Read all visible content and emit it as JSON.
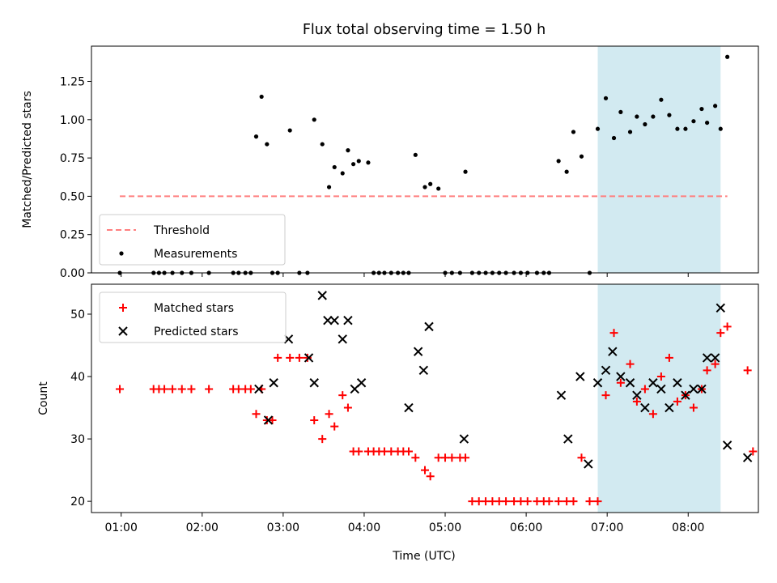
{
  "chart_data": {
    "title": "Flux total observing time = 1.50 h",
    "shaded_span": {
      "x_start": "06:53",
      "x_end": "08:24",
      "color": "#add8e6"
    },
    "x_axis": {
      "xlabel": "Time (UTC)",
      "xlim": [
        "00:38",
        "08:52"
      ],
      "ticks": [
        "01:00",
        "02:00",
        "03:00",
        "04:00",
        "05:00",
        "06:00",
        "07:00",
        "08:00"
      ]
    },
    "panels": [
      {
        "type": "scatter",
        "ylabel": "Matched/Predicted stars",
        "ylim": [
          0,
          1.48
        ],
        "yticks": [
          "0.00",
          "0.25",
          "0.50",
          "0.75",
          "1.00",
          "1.25"
        ],
        "legend": {
          "placement": "lower-left",
          "entries": [
            "Threshold",
            "Measurements"
          ]
        },
        "threshold": {
          "name": "Threshold",
          "value": 0.5,
          "x_start": "00:59",
          "x_end": "08:29",
          "color": "#ff7f7f"
        },
        "series": [
          {
            "name": "Measurements",
            "marker": "dot",
            "color": "#000000",
            "x": [
              "00:59",
              "01:24",
              "01:28",
              "01:32",
              "01:38",
              "01:45",
              "01:52",
              "02:05",
              "02:23",
              "02:27",
              "02:32",
              "02:36",
              "02:40",
              "02:44",
              "02:48",
              "02:52",
              "02:56",
              "03:05",
              "03:12",
              "03:18",
              "03:23",
              "03:29",
              "03:34",
              "03:38",
              "03:44",
              "03:48",
              "03:52",
              "03:56",
              "04:03",
              "04:07",
              "04:11",
              "04:15",
              "04:20",
              "04:25",
              "04:29",
              "04:33",
              "04:38",
              "04:45",
              "04:49",
              "04:55",
              "05:00",
              "05:05",
              "05:11",
              "05:15",
              "05:20",
              "05:25",
              "05:30",
              "05:35",
              "05:40",
              "05:45",
              "05:51",
              "05:56",
              "06:01",
              "06:08",
              "06:13",
              "06:17",
              "06:24",
              "06:30",
              "06:35",
              "06:41",
              "06:47",
              "06:53",
              "06:59",
              "07:05",
              "07:10",
              "07:17",
              "07:22",
              "07:28",
              "07:34",
              "07:40",
              "07:46",
              "07:52",
              "07:58",
              "08:04",
              "08:10",
              "08:14",
              "08:20",
              "08:24",
              "08:29"
            ],
            "y": [
              0.0,
              0.0,
              0.0,
              0.0,
              0.0,
              0.0,
              0.0,
              0.0,
              0.0,
              0.0,
              0.0,
              0.0,
              0.89,
              1.15,
              0.84,
              0.0,
              0.0,
              0.93,
              0.0,
              0.0,
              1.0,
              0.84,
              0.56,
              0.69,
              0.65,
              0.8,
              0.71,
              0.73,
              0.72,
              0.0,
              0.0,
              0.0,
              0.0,
              0.0,
              0.0,
              0.0,
              0.77,
              0.56,
              0.58,
              0.55,
              0.0,
              0.0,
              0.0,
              0.66,
              0.0,
              0.0,
              0.0,
              0.0,
              0.0,
              0.0,
              0.0,
              0.0,
              0.0,
              0.0,
              0.0,
              0.0,
              0.73,
              0.66,
              0.92,
              0.76,
              0.0,
              0.94,
              1.14,
              0.88,
              1.05,
              0.92,
              1.02,
              0.97,
              1.02,
              1.13,
              1.03,
              0.94,
              0.94,
              0.99,
              1.07,
              0.98,
              1.09,
              0.94,
              1.41
            ]
          }
        ]
      },
      {
        "type": "scatter",
        "ylabel": "Count",
        "ylim": [
          18.2,
          54.8
        ],
        "yticks": [
          "20",
          "30",
          "40",
          "50"
        ],
        "legend": {
          "placement": "upper-left",
          "entries": [
            "Matched stars",
            "Predicted stars"
          ]
        },
        "series": [
          {
            "name": "Matched stars",
            "marker": "plus",
            "color": "#ff0000",
            "x": [
              "00:59",
              "01:24",
              "01:28",
              "01:32",
              "01:38",
              "01:45",
              "01:52",
              "02:05",
              "02:23",
              "02:27",
              "02:32",
              "02:36",
              "02:40",
              "02:44",
              "02:48",
              "02:52",
              "02:56",
              "03:05",
              "03:12",
              "03:18",
              "03:23",
              "03:29",
              "03:34",
              "03:38",
              "03:44",
              "03:48",
              "03:52",
              "03:56",
              "04:03",
              "04:07",
              "04:11",
              "04:15",
              "04:20",
              "04:25",
              "04:29",
              "04:33",
              "04:38",
              "04:45",
              "04:49",
              "04:55",
              "05:00",
              "05:05",
              "05:11",
              "05:15",
              "05:20",
              "05:25",
              "05:30",
              "05:35",
              "05:40",
              "05:45",
              "05:51",
              "05:56",
              "06:01",
              "06:08",
              "06:13",
              "06:17",
              "06:24",
              "06:30",
              "06:35",
              "06:41",
              "06:47",
              "06:53",
              "06:59",
              "07:05",
              "07:10",
              "07:17",
              "07:22",
              "07:28",
              "07:34",
              "07:40",
              "07:46",
              "07:52",
              "07:58",
              "08:04",
              "08:10",
              "08:14",
              "08:20",
              "08:24",
              "08:29",
              "08:44",
              "08:48"
            ],
            "y": [
              38,
              38,
              38,
              38,
              38,
              38,
              38,
              38,
              38,
              38,
              38,
              38,
              34,
              38,
              33,
              33,
              43,
              43,
              43,
              43,
              33,
              30,
              34,
              32,
              37,
              35,
              28,
              28,
              28,
              28,
              28,
              28,
              28,
              28,
              28,
              28,
              27,
              25,
              24,
              27,
              27,
              27,
              27,
              27,
              20,
              20,
              20,
              20,
              20,
              20,
              20,
              20,
              20,
              20,
              20,
              20,
              20,
              20,
              20,
              27,
              20,
              20,
              37,
              47,
              39,
              42,
              36,
              38,
              34,
              40,
              43,
              36,
              37,
              35,
              38,
              41,
              42,
              47,
              48,
              41,
              28
            ]
          },
          {
            "name": "Predicted stars",
            "marker": "x",
            "color": "#000000",
            "x": [
              "02:42",
              "02:49",
              "02:53",
              "03:04",
              "03:19",
              "03:23",
              "03:29",
              "03:33",
              "03:38",
              "03:44",
              "03:48",
              "03:53",
              "03:58",
              "04:33",
              "04:40",
              "04:44",
              "04:48",
              "05:14",
              "06:26",
              "06:31",
              "06:40",
              "06:46",
              "06:53",
              "06:59",
              "07:04",
              "07:10",
              "07:17",
              "07:22",
              "07:28",
              "07:34",
              "07:40",
              "07:46",
              "07:52",
              "07:58",
              "08:04",
              "08:10",
              "08:14",
              "08:20",
              "08:24",
              "08:29",
              "08:44"
            ],
            "y": [
              38,
              33,
              39,
              46,
              43,
              39,
              53,
              49,
              49,
              46,
              49,
              38,
              39,
              35,
              44,
              41,
              48,
              30,
              37,
              30,
              40,
              26,
              39,
              41,
              44,
              40,
              39,
              37,
              35,
              39,
              38,
              35,
              39,
              37,
              38,
              38,
              43,
              43,
              51,
              29,
              27
            ]
          }
        ]
      }
    ]
  }
}
